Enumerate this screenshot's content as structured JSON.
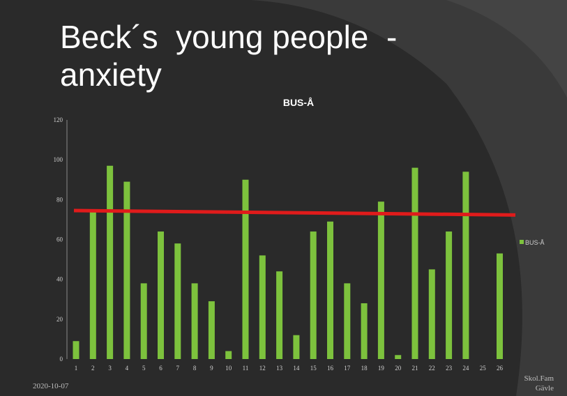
{
  "slide": {
    "title": "Beck´s  young people  -\nanxiety",
    "date": "2020-10-07",
    "org_line1": "Skol.Fam",
    "org_line2": "Gävle"
  },
  "colors": {
    "background": "#2a2a2a",
    "panel": "#3a3a3a",
    "bar": "#7dc23d",
    "trendline": "#e01b1b",
    "text": "#ffffff",
    "axis": "#8a8a8a"
  },
  "chart_data": {
    "type": "bar",
    "title": "BUS-Å",
    "xlabel": "",
    "ylabel": "",
    "ylim": [
      0,
      120
    ],
    "yticks": [
      0,
      20,
      40,
      60,
      80,
      100,
      120
    ],
    "grid": false,
    "legend_position": "right",
    "categories": [
      "1",
      "2",
      "3",
      "4",
      "5",
      "6",
      "7",
      "8",
      "9",
      "10",
      "11",
      "12",
      "13",
      "14",
      "15",
      "16",
      "17",
      "18",
      "19",
      "20",
      "21",
      "22",
      "23",
      "24",
      "25",
      "26"
    ],
    "series": [
      {
        "name": "BUS-Å",
        "values": [
          9,
          74,
          97,
          89,
          38,
          64,
          58,
          38,
          29,
          4,
          90,
          52,
          44,
          12,
          64,
          69,
          38,
          28,
          79,
          2,
          96,
          45,
          64,
          94,
          0,
          53
        ]
      }
    ],
    "trendline": {
      "type": "linear",
      "start": 74.5,
      "end": 72.3
    }
  }
}
